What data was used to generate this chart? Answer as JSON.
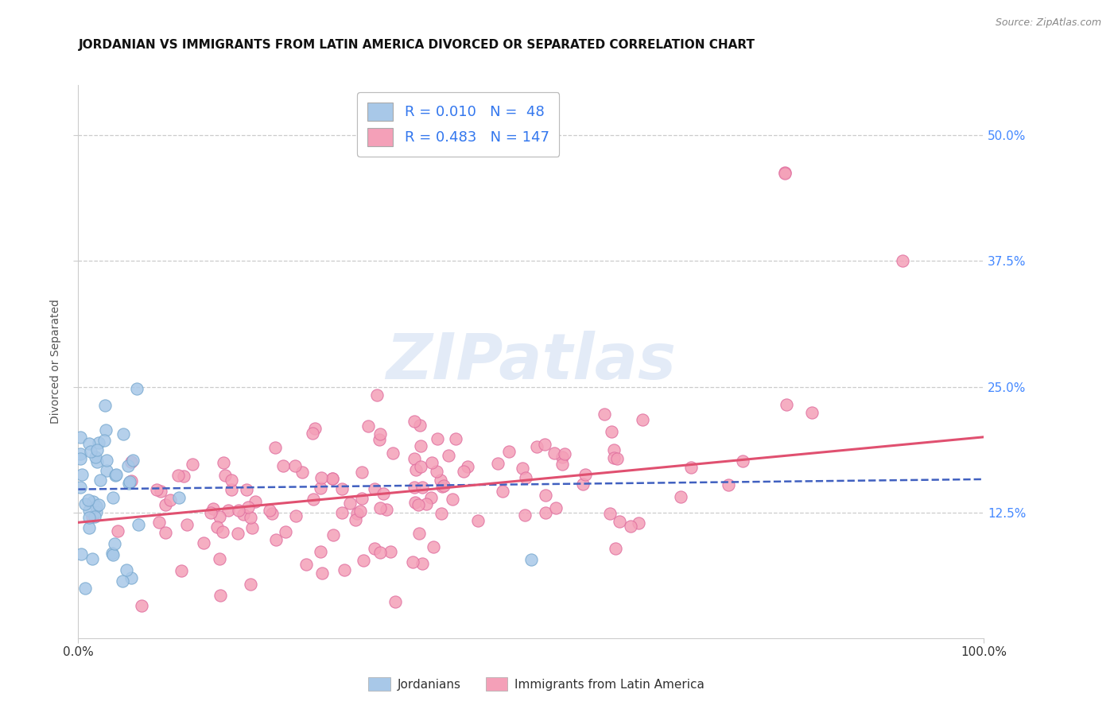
{
  "title": "JORDANIAN VS IMMIGRANTS FROM LATIN AMERICA DIVORCED OR SEPARATED CORRELATION CHART",
  "source": "Source: ZipAtlas.com",
  "ylabel": "Divorced or Separated",
  "xlim": [
    0.0,
    1.0
  ],
  "ylim": [
    0.0,
    0.55
  ],
  "xtick_labels": [
    "0.0%",
    "100.0%"
  ],
  "yticks": [
    0.125,
    0.25,
    0.375,
    0.5
  ],
  "ytick_labels": [
    "12.5%",
    "25.0%",
    "37.5%",
    "50.0%"
  ],
  "series1_name": "Jordanians",
  "series2_name": "Immigrants from Latin America",
  "series1_color": "#a8c8e8",
  "series2_color": "#f4a0b8",
  "series1_edge_color": "#7aaad0",
  "series2_edge_color": "#e070a0",
  "series1_line_color": "#4060c0",
  "series2_line_color": "#e05070",
  "series1_R": 0.01,
  "series1_N": 48,
  "series1_intercept": 0.148,
  "series1_slope": 0.01,
  "series2_R": 0.483,
  "series2_N": 147,
  "series2_intercept": 0.115,
  "series2_slope": 0.085,
  "background_color": "#ffffff",
  "grid_color": "#cccccc",
  "watermark_text": "ZIPatlas",
  "title_fontsize": 11,
  "axis_fontsize": 10,
  "tick_fontsize": 11,
  "legend_fontsize": 13,
  "dot_size": 120
}
